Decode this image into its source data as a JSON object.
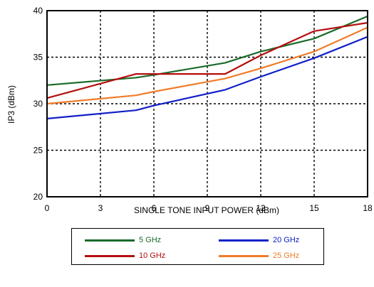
{
  "chart_data": {
    "type": "line",
    "xlabel": "SINGLE TONE INPUT POWER (dBm)",
    "ylabel": "IP3 (dBm)",
    "xlim": [
      0,
      18
    ],
    "ylim": [
      20,
      40
    ],
    "xticks": [
      0,
      3,
      6,
      9,
      12,
      15,
      18
    ],
    "yticks": [
      20,
      25,
      30,
      35,
      40
    ],
    "grid": true,
    "legend_position": "bottom",
    "series": [
      {
        "name": "5 GHz",
        "color": "#1a6b2a",
        "x": [
          0,
          5,
          6,
          10,
          12,
          15,
          18
        ],
        "y": [
          32.0,
          32.8,
          33.1,
          34.4,
          35.6,
          37.0,
          39.4
        ]
      },
      {
        "name": "10 GHz",
        "color": "#b50d0d",
        "x": [
          0,
          5,
          6,
          10,
          12,
          15,
          18
        ],
        "y": [
          30.6,
          33.2,
          33.2,
          33.2,
          35.2,
          37.8,
          38.7
        ]
      },
      {
        "name": "20 GHz",
        "color": "#1020c8",
        "x": [
          0,
          5,
          6,
          10,
          12,
          15,
          18
        ],
        "y": [
          28.4,
          29.3,
          29.8,
          31.5,
          32.9,
          34.9,
          37.2
        ]
      },
      {
        "name": "25 GHz",
        "color": "#f07c2a",
        "x": [
          0,
          5,
          6,
          10,
          12,
          15,
          18
        ],
        "y": [
          30.0,
          30.9,
          31.3,
          32.7,
          33.8,
          35.6,
          38.2
        ]
      }
    ]
  }
}
